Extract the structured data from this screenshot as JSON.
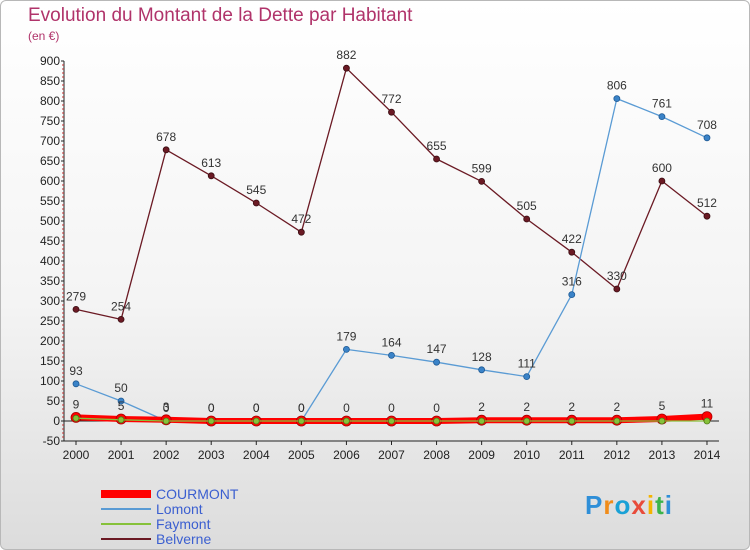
{
  "chart_data": {
    "type": "line",
    "title": "Evolution du Montant de la Dette par Habitant",
    "subtitle": "(en €)",
    "x": [
      "2000",
      "2001",
      "2002",
      "2003",
      "2004",
      "2005",
      "2006",
      "2007",
      "2008",
      "2009",
      "2010",
      "2011",
      "2012",
      "2013",
      "2014"
    ],
    "ylim": [
      -50,
      900
    ],
    "yticks": [
      -50,
      0,
      50,
      100,
      150,
      200,
      250,
      300,
      350,
      400,
      450,
      500,
      550,
      600,
      650,
      700,
      750,
      800,
      850,
      900
    ],
    "grid": false,
    "legend_position": "bottom-left",
    "series": [
      {
        "name": "COURMONT",
        "color": "#ff0000",
        "values": [
          9,
          5,
          3,
          0,
          0,
          0,
          0,
          0,
          0,
          2,
          2,
          2,
          2,
          5,
          11
        ],
        "labels": [
          "9",
          "5",
          "3",
          "0",
          "0",
          "0",
          "0",
          "0",
          "0",
          "2",
          "2",
          "2",
          "2",
          "5",
          "11"
        ]
      },
      {
        "name": "Lomont",
        "color": "#5a9bd4",
        "values": [
          93,
          50,
          0,
          0,
          0,
          0,
          179,
          164,
          147,
          128,
          111,
          316,
          806,
          761,
          708
        ],
        "labels": [
          "93",
          "50",
          "0",
          "0",
          "0",
          "0",
          "179",
          "164",
          "147",
          "128",
          "111",
          "316",
          "806",
          "761",
          "708"
        ]
      },
      {
        "name": "Faymont",
        "color": "#86c13a",
        "values": [
          7,
          3,
          0,
          0,
          0,
          0,
          0,
          0,
          0,
          0,
          0,
          0,
          0,
          0,
          0
        ],
        "labels": [
          "",
          "",
          "",
          "",
          "",
          "",
          "",
          "",
          "",
          "",
          "",
          "",
          "",
          "",
          ""
        ]
      },
      {
        "name": "Belverne",
        "color": "#6b1a24",
        "values": [
          279,
          254,
          678,
          613,
          545,
          472,
          882,
          772,
          655,
          599,
          505,
          422,
          330,
          600,
          512
        ],
        "labels": [
          "279",
          "254",
          "678",
          "613",
          "545",
          "472",
          "882",
          "772",
          "655",
          "599",
          "505",
          "422",
          "330",
          "600",
          "512"
        ]
      }
    ]
  },
  "logo": {
    "letters": [
      "P",
      "r",
      "o",
      "x",
      "i",
      "t",
      "i"
    ],
    "colors": [
      "#2f8fd8",
      "#f08c1a",
      "#1aa1d6",
      "#e84b3a",
      "#f4b400",
      "#3cb44b",
      "#2f8fd8"
    ]
  }
}
